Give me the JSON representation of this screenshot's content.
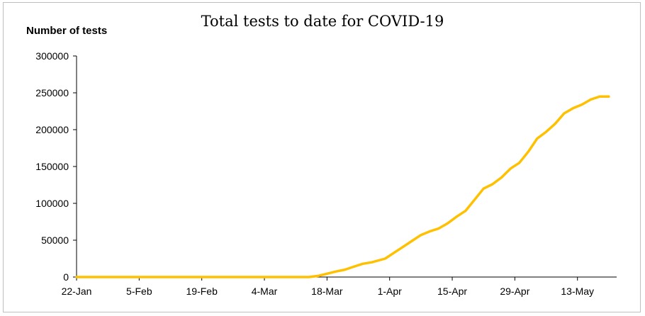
{
  "chart_data": {
    "type": "line",
    "title": "Total tests to date for COVID-19",
    "ylabel": "Number of tests",
    "xlabel": "",
    "ylim": [
      0,
      300000
    ],
    "yticks": [
      "300000",
      "250000",
      "200000",
      "150000",
      "100000",
      "50000",
      "0"
    ],
    "xticks": [
      "22-Jan",
      "5-Feb",
      "19-Feb",
      "4-Mar",
      "18-Mar",
      "1-Apr",
      "15-Apr",
      "29-Apr",
      "13-May"
    ],
    "grid": false,
    "legend": "none",
    "line_color": "#ffc000",
    "series": [
      {
        "x": [
          "2020-01-22",
          "2020-03-14",
          "2020-03-16",
          "2020-03-18",
          "2020-03-20",
          "2020-03-22",
          "2020-03-24",
          "2020-03-26",
          "2020-03-28",
          "2020-03-31",
          "2020-04-02",
          "2020-04-04",
          "2020-04-06",
          "2020-04-08",
          "2020-04-10",
          "2020-04-12",
          "2020-04-14",
          "2020-04-16",
          "2020-04-18",
          "2020-04-20",
          "2020-04-22",
          "2020-04-24",
          "2020-04-26",
          "2020-04-28",
          "2020-04-30",
          "2020-05-02",
          "2020-05-04",
          "2020-05-06",
          "2020-05-08",
          "2020-05-10",
          "2020-05-12",
          "2020-05-14",
          "2020-05-16",
          "2020-05-18",
          "2020-05-20"
        ],
        "y": [
          0,
          0,
          1500,
          4500,
          7500,
          10000,
          14000,
          18000,
          20000,
          25000,
          33000,
          41000,
          49000,
          57000,
          62000,
          66000,
          73000,
          82000,
          90000,
          105000,
          120000,
          126000,
          135000,
          147000,
          155000,
          170000,
          188000,
          197000,
          208000,
          222000,
          229000,
          234000,
          241000,
          245000,
          245000
        ]
      }
    ]
  }
}
